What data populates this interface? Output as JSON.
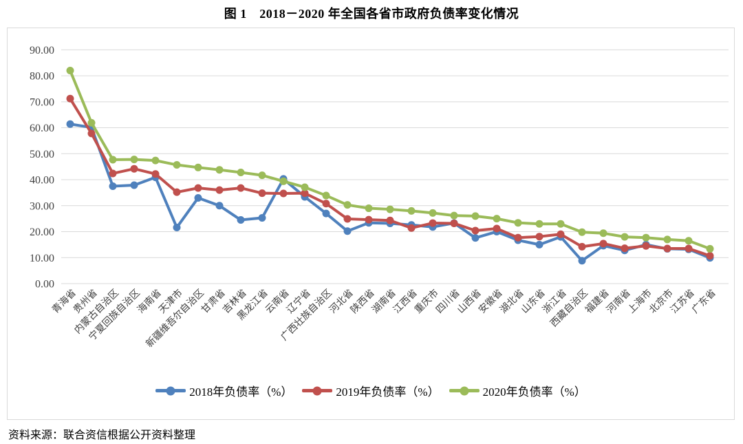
{
  "figure": {
    "title": "图 1　2018－2020 年全国各省市政府负债率变化情况",
    "source_note": "资料来源：联合资信根据公开资料整理"
  },
  "colors": {
    "series_2018": "#4F81BD",
    "series_2019": "#C0504D",
    "series_2020": "#9BBB59",
    "gridline": "#d9d9d9",
    "axis_text": "#3f3f3f"
  },
  "chart_data": {
    "type": "line",
    "title": "图 1　2018－2020 年全国各省市政府负债率变化情况",
    "xlabel": "",
    "ylabel": "",
    "ylim": [
      0,
      90
    ],
    "ytick_step": 10,
    "ytick_decimals": 2,
    "grid": "horizontal",
    "legend_position": "bottom",
    "categories": [
      "青海省",
      "贵州省",
      "内蒙古自治区",
      "宁夏回族自治区",
      "海南省",
      "天津市",
      "新疆维吾尔自治区",
      "甘肃省",
      "吉林省",
      "黑龙江省",
      "云南省",
      "辽宁省",
      "广西壮族自治区",
      "河北省",
      "陕西省",
      "湖南省",
      "江西省",
      "重庆市",
      "四川省",
      "山西省",
      "安徽省",
      "湖北省",
      "山东省",
      "浙江省",
      "西藏自治区",
      "福建省",
      "河南省",
      "上海市",
      "北京市",
      "江苏省",
      "广东省"
    ],
    "series": [
      {
        "name": "2018年负债率（%）",
        "color": "#4F81BD",
        "values": [
          61.4,
          60.1,
          37.5,
          37.9,
          40.9,
          21.6,
          33.0,
          30.0,
          24.5,
          25.3,
          40.3,
          33.4,
          27.0,
          20.2,
          23.4,
          23.2,
          22.6,
          21.8,
          23.3,
          17.6,
          20.0,
          16.7,
          15.0,
          18.0,
          8.8,
          14.6,
          12.8,
          15.0,
          13.4,
          13.2,
          9.9
        ]
      },
      {
        "name": "2019年负债率（%）",
        "color": "#C0504D",
        "values": [
          71.2,
          57.8,
          42.4,
          44.2,
          42.2,
          35.2,
          36.8,
          36.0,
          36.8,
          34.8,
          34.7,
          34.8,
          30.8,
          24.9,
          24.6,
          24.3,
          21.4,
          23.3,
          23.2,
          20.4,
          21.2,
          17.7,
          18.1,
          19.0,
          14.2,
          15.4,
          13.6,
          14.5,
          13.5,
          13.5,
          10.7
        ]
      },
      {
        "name": "2020年负债率（%）",
        "color": "#9BBB59",
        "values": [
          82.0,
          61.9,
          47.7,
          47.8,
          47.4,
          45.7,
          44.7,
          43.8,
          42.8,
          41.7,
          39.4,
          37.1,
          33.9,
          30.3,
          29.0,
          28.6,
          28.0,
          27.2,
          26.2,
          26.0,
          25.0,
          23.4,
          23.0,
          23.0,
          19.8,
          19.4,
          18.0,
          17.7,
          17.0,
          16.5,
          13.4
        ]
      }
    ]
  }
}
